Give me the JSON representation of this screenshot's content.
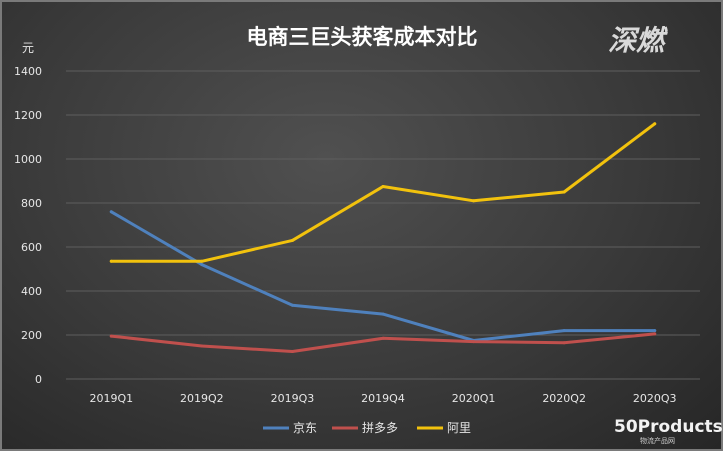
{
  "logo_text": "深燃",
  "watermark": {
    "main": "50Products",
    "sub": "物流产品网"
  },
  "chart_data": {
    "type": "line",
    "title": "电商三巨头获客成本对比",
    "ylabel": "元",
    "ylim": [
      0,
      1400
    ],
    "yticks": [
      0,
      200,
      400,
      600,
      800,
      1000,
      1200,
      1400
    ],
    "categories": [
      "2019Q1",
      "2019Q2",
      "2019Q3",
      "2019Q4",
      "2020Q1",
      "2020Q2",
      "2020Q3"
    ],
    "grid": true,
    "legend_position": "bottom",
    "series": [
      {
        "name": "京东",
        "color": "#4f81bd",
        "values": [
          760,
          520,
          335,
          295,
          175,
          220,
          220
        ]
      },
      {
        "name": "拼多多",
        "color": "#c0504d",
        "values": [
          195,
          150,
          125,
          185,
          170,
          165,
          205
        ]
      },
      {
        "name": "阿里",
        "color": "#f2c20d",
        "values": [
          535,
          535,
          630,
          875,
          810,
          850,
          1160
        ]
      }
    ]
  }
}
